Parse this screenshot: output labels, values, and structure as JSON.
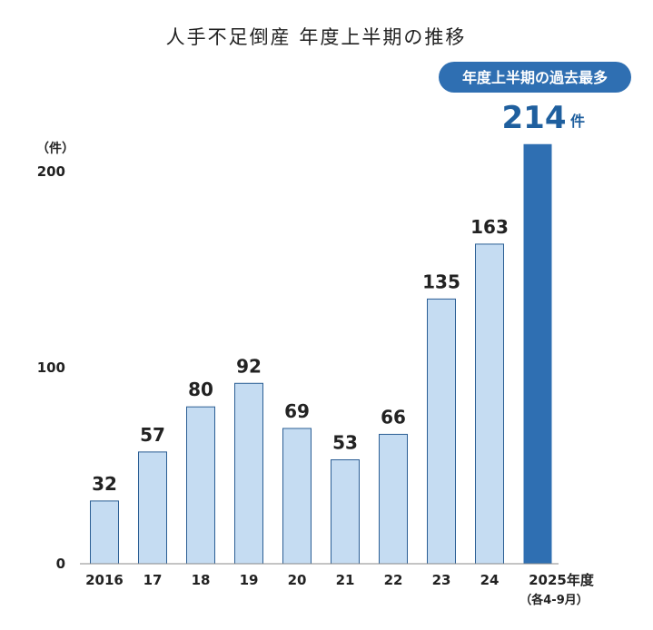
{
  "chart_data": {
    "type": "bar",
    "title": "人手不足倒産 年度上半期の推移",
    "ylabel": "（件）",
    "ylim": [
      0,
      200
    ],
    "yticks": [
      "0",
      "100",
      "200"
    ],
    "categories": [
      "2016",
      "17",
      "18",
      "19",
      "20",
      "21",
      "22",
      "23",
      "24",
      "2025年度"
    ],
    "last_category_note": "（各4-9月）",
    "values": [
      32,
      57,
      80,
      92,
      69,
      53,
      66,
      135,
      163,
      214
    ],
    "value_labels": [
      "32",
      "57",
      "80",
      "92",
      "69",
      "53",
      "66",
      "135",
      "163",
      "214"
    ],
    "highlight": {
      "index": 9,
      "badge": "年度上半期の過去最多",
      "unit": "件"
    },
    "colors": {
      "bar": "#c5dcf2",
      "bar_stroke": "#2b5e94",
      "highlight_bar": "#2f6fb2",
      "badge": "#2f6fb2",
      "highlight_text": "#1f5f9e"
    },
    "grid": false,
    "legend": "none"
  }
}
